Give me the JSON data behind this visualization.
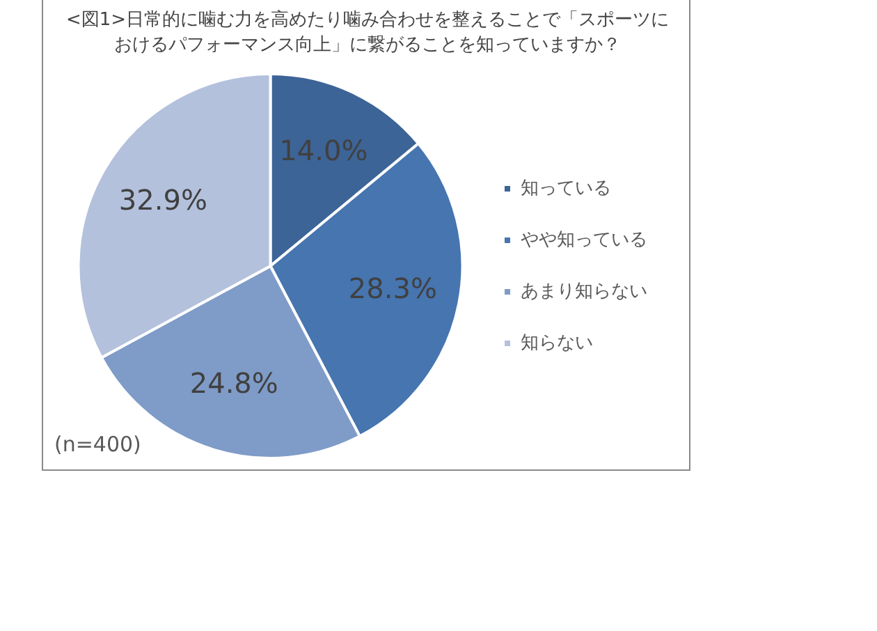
{
  "chart_data": {
    "type": "pie",
    "title": "<図1>日常的に噛む力を高めたり噛み合わせを整えることで「スポーツにおけるパフォーマンス向上」に繋がることを知っていますか？",
    "categories": [
      "知っている",
      "やや知っている",
      "あまり知らない",
      "知らない"
    ],
    "values": [
      14.0,
      28.3,
      24.8,
      32.9
    ],
    "value_labels": [
      "14.0%",
      "28.3%",
      "24.8%",
      "32.9%"
    ],
    "colors": [
      "#3d6496",
      "#4675b0",
      "#7f9bc8",
      "#b3c1dc"
    ],
    "legend": "right",
    "annotations": [
      "(n=400)"
    ]
  }
}
